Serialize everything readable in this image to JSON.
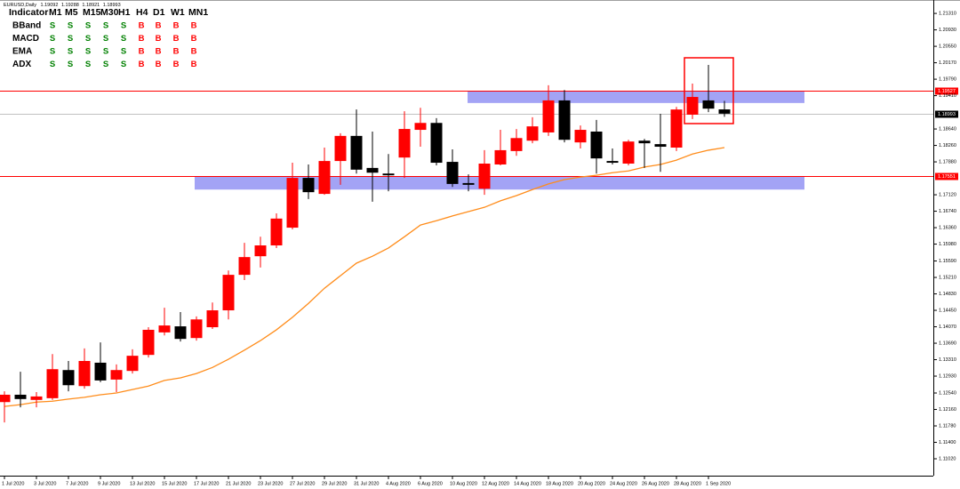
{
  "chart_data": {
    "type": "candlestick",
    "title": "EURUSD,Daily",
    "categories": [
      "1 Jul 2020",
      null,
      "3 Jul 2020",
      null,
      "7 Jul 2020",
      null,
      "9 Jul 2020",
      null,
      "13 Jul 2020",
      null,
      "15 Jul 2020",
      null,
      "17 Jul 2020",
      null,
      "21 Jul 2020",
      null,
      "23 Jul 2020",
      null,
      "27 Jul 2020",
      null,
      "29 Jul 2020",
      null,
      "31 Jul 2020",
      null,
      "4 Aug 2020",
      null,
      "6 Aug 2020",
      null,
      "10 Aug 2020",
      null,
      "12 Aug 2020",
      null,
      "14 Aug 2020",
      null,
      "18 Aug 2020",
      null,
      "20 Aug 2020",
      null,
      "24 Aug 2020",
      null,
      "26 Aug 2020",
      null,
      "28 Aug 2020",
      null,
      "1 Sep 2020",
      null
    ],
    "open": [
      1.1233,
      1.125,
      1.1238,
      1.1242,
      1.1307,
      1.127,
      1.1324,
      1.1285,
      1.1305,
      1.1342,
      1.1394,
      1.1408,
      1.1381,
      1.1406,
      1.1445,
      1.1527,
      1.157,
      1.1595,
      1.1636,
      1.1751,
      1.1714,
      1.179,
      1.1848,
      1.1774,
      1.1761,
      1.1798,
      1.1862,
      1.1878,
      1.1788,
      1.1739,
      1.1726,
      1.1782,
      1.1813,
      1.1837,
      1.1856,
      1.193,
      1.1833,
      1.1858,
      1.179,
      1.1784,
      1.1837,
      1.1829,
      1.1821,
      1.1897,
      1.193,
      1.19092
    ],
    "high": [
      1.1258,
      1.1303,
      1.1256,
      1.1344,
      1.1328,
      1.1357,
      1.1371,
      1.132,
      1.1355,
      1.1406,
      1.1451,
      1.1441,
      1.1431,
      1.1463,
      1.1537,
      1.1601,
      1.1615,
      1.1669,
      1.1786,
      1.1782,
      1.1821,
      1.1854,
      1.1909,
      1.1858,
      1.1806,
      1.1905,
      1.1913,
      1.1889,
      1.1817,
      1.1759,
      1.1815,
      1.1862,
      1.1864,
      1.1891,
      1.1965,
      1.1954,
      1.1872,
      1.1885,
      1.1819,
      1.1839,
      1.1841,
      1.1899,
      1.1915,
      1.1969,
      1.2012,
      1.19288
    ],
    "low": [
      1.1186,
      1.1221,
      1.1221,
      1.1238,
      1.1258,
      1.1264,
      1.1279,
      1.1256,
      1.1299,
      1.1336,
      1.1387,
      1.1373,
      1.1375,
      1.1402,
      1.1424,
      1.1515,
      1.1544,
      1.1589,
      1.1632,
      1.1702,
      1.1712,
      1.1735,
      1.1761,
      1.1696,
      1.172,
      1.1751,
      1.1823,
      1.178,
      1.173,
      1.172,
      1.1712,
      1.178,
      1.1802,
      1.1831,
      1.1848,
      1.1833,
      1.1819,
      1.1761,
      1.1782,
      1.178,
      1.1774,
      1.1765,
      1.1813,
      1.1887,
      1.1903,
      1.18921
    ],
    "close": [
      1.125,
      1.124,
      1.1246,
      1.1309,
      1.1272,
      1.1328,
      1.1283,
      1.1307,
      1.134,
      1.14,
      1.141,
      1.1379,
      1.1424,
      1.1445,
      1.1527,
      1.1568,
      1.1595,
      1.1657,
      1.1751,
      1.1718,
      1.179,
      1.1848,
      1.177,
      1.1763,
      1.1757,
      1.1864,
      1.1878,
      1.1786,
      1.1737,
      1.1735,
      1.1784,
      1.1815,
      1.1843,
      1.187,
      1.193,
      1.1839,
      1.1862,
      1.1796,
      1.1786,
      1.1835,
      1.1831,
      1.1823,
      1.1909,
      1.1938,
      1.1911,
      1.18993
    ],
    "up_color": "#ff0000",
    "down_color": "#000000",
    "overlays": [
      {
        "type": "line",
        "color": "#ff8c1a",
        "values": [
          1.1223,
          1.1227,
          1.1233,
          1.1235,
          1.124,
          1.1244,
          1.125,
          1.1254,
          1.1262,
          1.127,
          1.1283,
          1.1289,
          1.1299,
          1.1313,
          1.1332,
          1.1353,
          1.1375,
          1.14,
          1.1429,
          1.1461,
          1.1496,
          1.1525,
          1.1554,
          1.157,
          1.1589,
          1.1615,
          1.1642,
          1.1652,
          1.1663,
          1.1673,
          1.1683,
          1.1698,
          1.171,
          1.1724,
          1.1737,
          1.1747,
          1.1753,
          1.1757,
          1.1763,
          1.1767,
          1.1776,
          1.1782,
          1.1792,
          1.1806,
          1.1815,
          1.1821
        ]
      }
    ],
    "zones": [
      {
        "low": 1.1924,
        "high": 1.1952,
        "color": "#a3a3f5"
      },
      {
        "low": 1.1724,
        "high": 1.1755,
        "color": "#a3a3f5"
      }
    ],
    "hlines": [
      {
        "value": 1.19527,
        "color": "#ff0000"
      },
      {
        "value": 1.18993,
        "color": "#c0c0c0"
      },
      {
        "value": 1.17551,
        "color": "#ff0000"
      }
    ],
    "hline_label_fills": [
      "#ff0000",
      "#000000",
      "#ff0000"
    ],
    "ylim": [
      1.1063,
      1.2162
    ],
    "yticks": [
      {
        "value": 1.2131,
        "label": "1.21310"
      },
      {
        "value": 1.2093,
        "label": "1.20930"
      },
      {
        "value": 1.2055,
        "label": "1.20550"
      },
      {
        "value": 1.2017,
        "label": "1.20170"
      },
      {
        "value": 1.1979,
        "label": "1.19790"
      },
      {
        "value": 1.1941,
        "label": "1.19410"
      },
      {
        "value": 1.1864,
        "label": "1.18640"
      },
      {
        "value": 1.1826,
        "label": "1.18260"
      },
      {
        "value": 1.1788,
        "label": "1.17880"
      },
      {
        "value": 1.1712,
        "label": "1.17120"
      },
      {
        "value": 1.1674,
        "label": "1.16740"
      },
      {
        "value": 1.1636,
        "label": "1.16360"
      },
      {
        "value": 1.1598,
        "label": "1.15980"
      },
      {
        "value": 1.1559,
        "label": "1.15590"
      },
      {
        "value": 1.1521,
        "label": "1.15210"
      },
      {
        "value": 1.1483,
        "label": "1.14830"
      },
      {
        "value": 1.1445,
        "label": "1.14450"
      },
      {
        "value": 1.1407,
        "label": "1.14070"
      },
      {
        "value": 1.1369,
        "label": "1.13690"
      },
      {
        "value": 1.1331,
        "label": "1.13310"
      },
      {
        "value": 1.1293,
        "label": "1.12930"
      },
      {
        "value": 1.1254,
        "label": "1.12540"
      },
      {
        "value": 1.1216,
        "label": "1.12160"
      },
      {
        "value": 1.1178,
        "label": "1.11780"
      },
      {
        "value": 1.114,
        "label": "1.11400"
      },
      {
        "value": 1.1102,
        "label": "1.11020"
      }
    ],
    "grid": false,
    "indicator_table": {
      "header": [
        "Indicator",
        "M1",
        "M5",
        "M15",
        "M30",
        "H1",
        "H4",
        "D1",
        "W1",
        "MN1"
      ],
      "rows": [
        [
          "BBand",
          "S",
          "S",
          "S",
          "S",
          "S",
          "B",
          "B",
          "B",
          "B"
        ],
        [
          "MACD",
          "S",
          "S",
          "S",
          "S",
          "S",
          "B",
          "B",
          "B",
          "B"
        ],
        [
          "EMA",
          "S",
          "S",
          "S",
          "S",
          "S",
          "B",
          "B",
          "B",
          "B"
        ],
        [
          "ADX",
          "S",
          "S",
          "S",
          "S",
          "S",
          "B",
          "B",
          "B",
          "B"
        ]
      ],
      "signal_colors": {
        "S": "#008000",
        "B": "#ff0000"
      }
    }
  }
}
